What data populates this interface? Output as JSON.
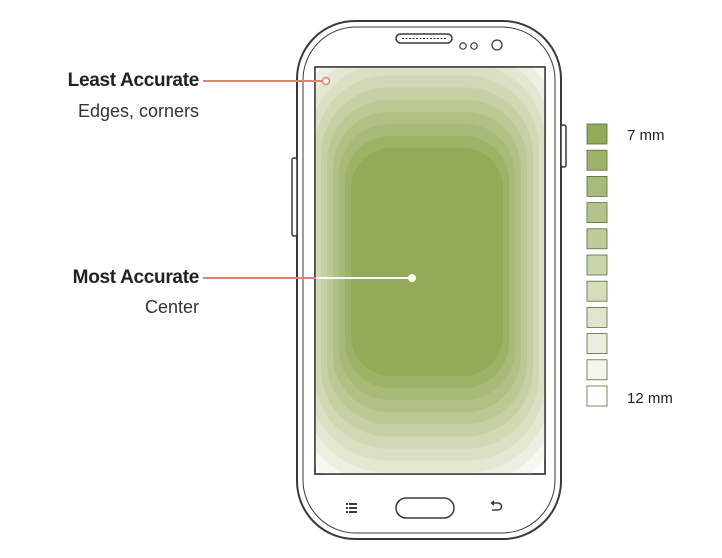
{
  "callouts": {
    "least": {
      "title": "Least Accurate",
      "subtitle": "Edges, corners"
    },
    "most": {
      "title": "Most Accurate",
      "subtitle": "Center"
    }
  },
  "legend": {
    "top_label": "7 mm",
    "bottom_label": "12 mm",
    "swatch_count": 11
  },
  "colors": {
    "callout_line": "#e08272",
    "zone_strongest": "#93aa58",
    "zone_weakest": "#ffffff",
    "outline": "#3a3a3a"
  },
  "icons": {
    "menu": "menu-icon",
    "home": "home-button",
    "back": "back-icon"
  }
}
